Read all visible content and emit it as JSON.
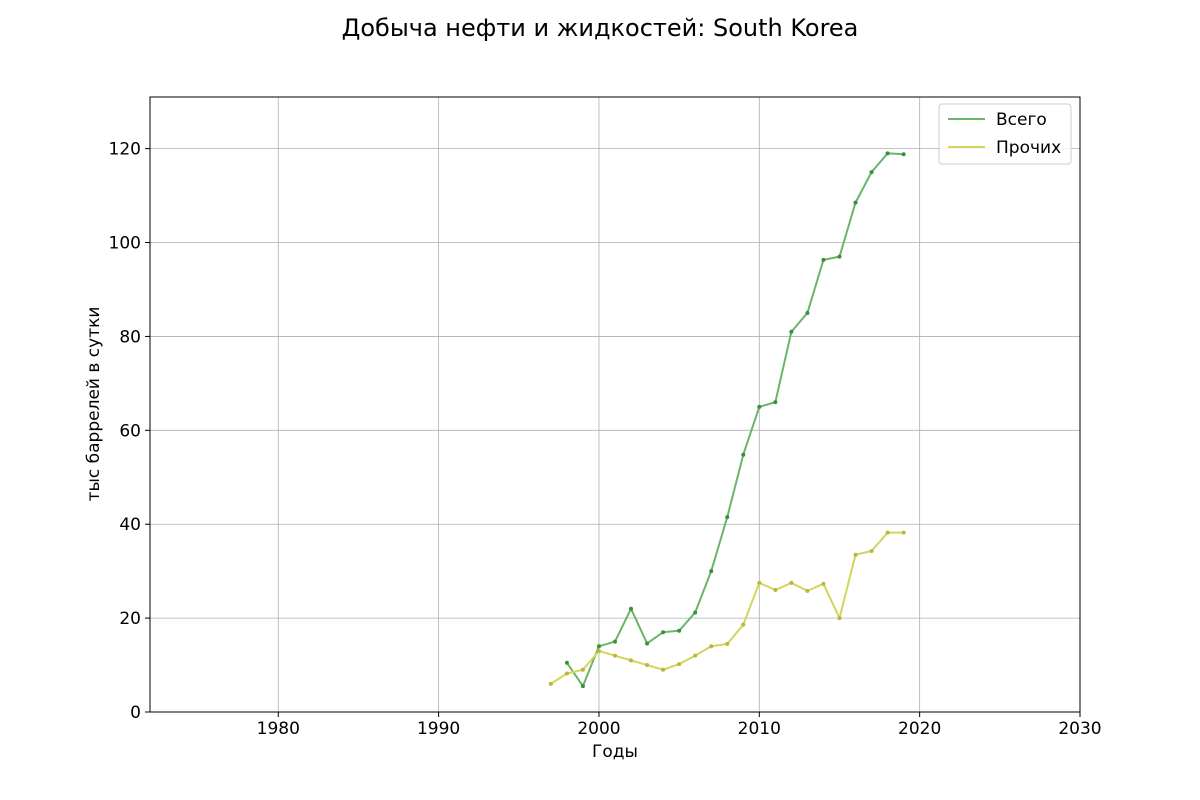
{
  "chart_data": {
    "type": "line",
    "title": "Добыча нефти и жидкостей: South Korea",
    "xlabel": "Годы",
    "ylabel": "тыс баррелей в сутки",
    "xlim": [
      1972,
      2030
    ],
    "ylim": [
      0,
      131
    ],
    "xticks": [
      1980,
      1990,
      2000,
      2010,
      2020,
      2030
    ],
    "yticks": [
      0,
      20,
      40,
      60,
      80,
      100,
      120
    ],
    "grid": true,
    "legend_position": "top-right",
    "series": [
      {
        "name": "Всего",
        "color": "#6ab56a",
        "marker_color": "#3a8f3a",
        "x": [
          1998,
          1999,
          2000,
          2001,
          2002,
          2003,
          2004,
          2005,
          2006,
          2007,
          2008,
          2009,
          2010,
          2011,
          2012,
          2013,
          2014,
          2015,
          2016,
          2017,
          2018,
          2019
        ],
        "values": [
          10.5,
          5.5,
          14,
          15,
          22,
          14.6,
          17,
          17.3,
          21.2,
          30,
          41.5,
          54.8,
          65,
          66,
          81,
          85,
          96.3,
          97,
          108.5,
          115,
          119,
          118.8
        ]
      },
      {
        "name": "Прочих",
        "color": "#d4d45e",
        "marker_color": "#b8b83a",
        "x": [
          1997,
          1998,
          1999,
          2000,
          2001,
          2002,
          2003,
          2004,
          2005,
          2006,
          2007,
          2008,
          2009,
          2010,
          2011,
          2012,
          2013,
          2014,
          2015,
          2016,
          2017,
          2018,
          2019
        ],
        "values": [
          6,
          8.2,
          9,
          13,
          12,
          11,
          10,
          9,
          10.2,
          12,
          14,
          14.5,
          18.6,
          27.5,
          26,
          27.5,
          25.8,
          27.3,
          20,
          33.5,
          34.3,
          38.2,
          38.2
        ]
      }
    ]
  }
}
